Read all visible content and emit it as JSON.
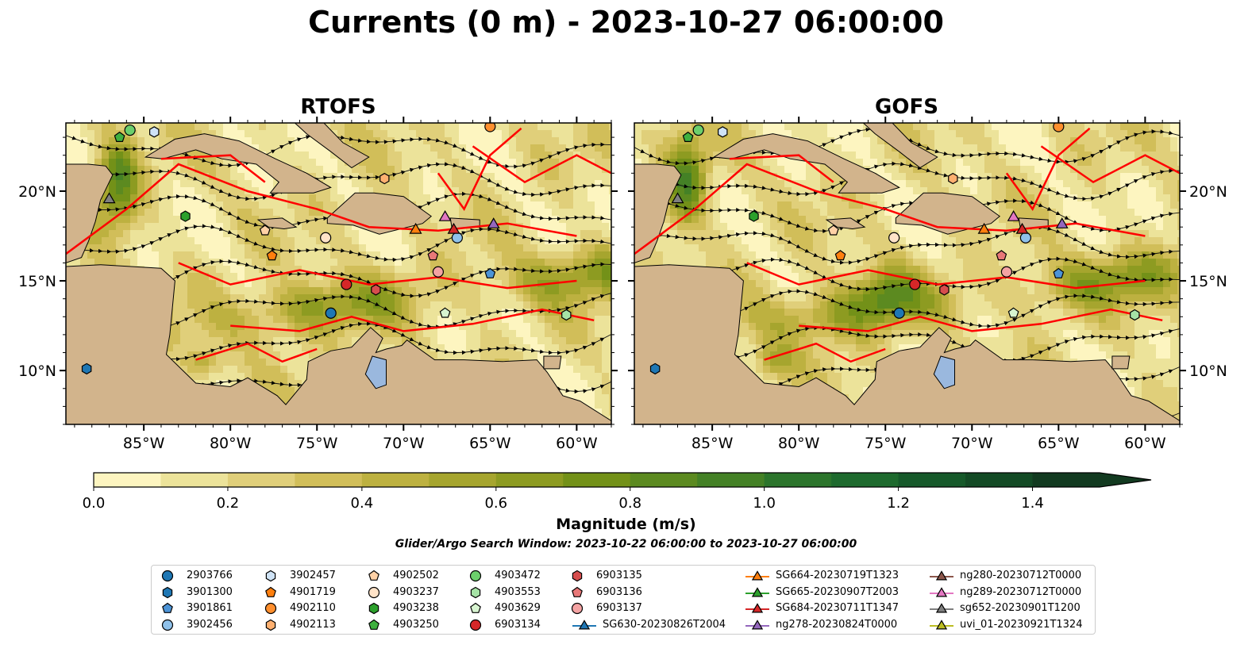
{
  "title": "Currents (0 m) - 2023-10-27 06:00:00",
  "panels": [
    {
      "title": "RTOFS"
    },
    {
      "title": "GOFS"
    }
  ],
  "colors": {
    "land": "#d2b48c",
    "fronts": "#ff0000",
    "lakes": "#9ab8de",
    "rivers": "#a9b8d0"
  },
  "chart_data": {
    "type": "heatmap",
    "variable": "Currents (0 m)",
    "datetime": "2023-10-27 06:00:00",
    "lon_ticks": [
      "85°W",
      "80°W",
      "75°W",
      "70°W",
      "65°W",
      "60°W"
    ],
    "lon_values": [
      -85,
      -80,
      -75,
      -70,
      -65,
      -60
    ],
    "lat_ticks": [
      "20°N",
      "15°N",
      "10°N"
    ],
    "lat_values": [
      20,
      15,
      10
    ],
    "xlim": [
      -89.5,
      -58.0
    ],
    "ylim": [
      7.0,
      23.8
    ],
    "colorbar": {
      "label": "Magnitude (m/s)",
      "ticks": [
        "0.0",
        "0.2",
        "0.4",
        "0.6",
        "0.8",
        "1.0",
        "1.2",
        "1.4"
      ],
      "tick_values": [
        0.0,
        0.2,
        0.4,
        0.6,
        0.8,
        1.0,
        1.2,
        1.4
      ],
      "range": [
        0.0,
        1.5
      ],
      "levels": [
        0.0,
        0.1,
        0.2,
        0.3,
        0.4,
        0.5,
        0.6,
        0.7,
        0.8,
        0.9,
        1.0,
        1.1,
        1.2,
        1.3,
        1.4,
        1.5
      ],
      "colors": [
        "#fdf5c0",
        "#ece39a",
        "#e0cf7a",
        "#d1be59",
        "#bdb140",
        "#a6a52e",
        "#8d9b21",
        "#739118",
        "#5c8a20",
        "#448126",
        "#2c752c",
        "#1e6a2e",
        "#16592a",
        "#134a25",
        "#123a20"
      ],
      "extend": "max"
    },
    "search_window": "Glider/Argo Search Window: 2023-10-22 06:00:00 to 2023-10-27 06:00:00",
    "legend": [
      {
        "label": "2903766",
        "marker": "circle",
        "color": "#1f77b4"
      },
      {
        "label": "3901300",
        "marker": "hexagon",
        "color": "#1f77b4"
      },
      {
        "label": "3901861",
        "marker": "pentagon",
        "color": "#4c93d6"
      },
      {
        "label": "3902456",
        "marker": "circle",
        "color": "#8fc1ea"
      },
      {
        "label": "3902457",
        "marker": "hexagon",
        "color": "#cfe3f6"
      },
      {
        "label": "4901719",
        "marker": "pentagon",
        "color": "#ff7f0e"
      },
      {
        "label": "4902110",
        "marker": "circle",
        "color": "#ff8f2e"
      },
      {
        "label": "4902113",
        "marker": "hexagon",
        "color": "#ffb070"
      },
      {
        "label": "4902502",
        "marker": "pentagon",
        "color": "#ffd1a6"
      },
      {
        "label": "4903237",
        "marker": "circle",
        "color": "#ffe3c8"
      },
      {
        "label": "4903238",
        "marker": "hexagon",
        "color": "#2ca02c"
      },
      {
        "label": "4903250",
        "marker": "pentagon",
        "color": "#3fb03f"
      },
      {
        "label": "4903472",
        "marker": "circle",
        "color": "#6ccf6c"
      },
      {
        "label": "4903553",
        "marker": "hexagon",
        "color": "#a6e3a6"
      },
      {
        "label": "4903629",
        "marker": "pentagon",
        "color": "#d7f4d0"
      },
      {
        "label": "6903134",
        "marker": "circle",
        "color": "#d62728"
      },
      {
        "label": "6903135",
        "marker": "hexagon",
        "color": "#d64d4d"
      },
      {
        "label": "6903136",
        "marker": "pentagon",
        "color": "#e87878"
      },
      {
        "label": "6903137",
        "marker": "circle",
        "color": "#f4a3a3"
      },
      {
        "label": "SG630-20230826T2004",
        "marker": "triangle-line",
        "color": "#1f77b4"
      },
      {
        "label": "SG664-20230719T1323",
        "marker": "triangle-line",
        "color": "#ff7f0e"
      },
      {
        "label": "SG665-20230907T2003",
        "marker": "triangle-line",
        "color": "#2ca02c"
      },
      {
        "label": "SG684-20230711T1347",
        "marker": "triangle-line",
        "color": "#d62728"
      },
      {
        "label": "ng278-20230824T0000",
        "marker": "triangle-line",
        "color": "#9467bd"
      },
      {
        "label": "ng280-20230712T0000",
        "marker": "triangle-line",
        "color": "#8c564b"
      },
      {
        "label": "ng289-20230712T0000",
        "marker": "triangle-line",
        "color": "#e377c2"
      },
      {
        "label": "sg652-20230901T1200",
        "marker": "triangle-line",
        "color": "#7f7f7f"
      },
      {
        "label": "uvi_01-20230921T1324",
        "marker": "triangle-line",
        "color": "#bcbd22"
      }
    ],
    "platforms": [
      {
        "id": "2903766",
        "lon": -74.2,
        "lat": 13.2
      },
      {
        "id": "3901300",
        "lon": -88.3,
        "lat": 10.1
      },
      {
        "id": "3901861",
        "lon": -65.0,
        "lat": 15.4
      },
      {
        "id": "3902456",
        "lon": -66.9,
        "lat": 17.4
      },
      {
        "id": "3902457",
        "lon": -84.4,
        "lat": 23.3
      },
      {
        "id": "4901719",
        "lon": -77.6,
        "lat": 16.4
      },
      {
        "id": "4902110",
        "lon": -65.0,
        "lat": 23.6
      },
      {
        "id": "4902113",
        "lon": -71.1,
        "lat": 20.7
      },
      {
        "id": "4902502",
        "lon": -78.0,
        "lat": 17.8
      },
      {
        "id": "4903237",
        "lon": -74.5,
        "lat": 17.4
      },
      {
        "id": "4903238",
        "lon": -82.6,
        "lat": 18.6
      },
      {
        "id": "4903250",
        "lon": -86.4,
        "lat": 23.0
      },
      {
        "id": "4903472",
        "lon": -85.8,
        "lat": 23.4
      },
      {
        "id": "4903553",
        "lon": -60.6,
        "lat": 13.1
      },
      {
        "id": "4903629",
        "lon": -67.6,
        "lat": 13.2
      },
      {
        "id": "6903134",
        "lon": -73.3,
        "lat": 14.8
      },
      {
        "id": "6903135",
        "lon": -71.6,
        "lat": 14.5
      },
      {
        "id": "6903136",
        "lon": -68.3,
        "lat": 16.4
      },
      {
        "id": "6903137",
        "lon": -68.0,
        "lat": 15.5
      }
    ],
    "gliders": [
      {
        "id": "SG664-20230719T1323",
        "lon": -69.3,
        "lat": 17.9
      },
      {
        "id": "SG684-20230711T1347",
        "lon": -67.1,
        "lat": 17.9
      },
      {
        "id": "ng278-20230824T0000",
        "lon": -64.8,
        "lat": 18.2
      },
      {
        "id": "ng289-20230712T0000",
        "lon": -67.6,
        "lat": 18.6
      },
      {
        "id": "sg652-20230901T1200",
        "lon": -87.0,
        "lat": 19.6
      }
    ]
  }
}
